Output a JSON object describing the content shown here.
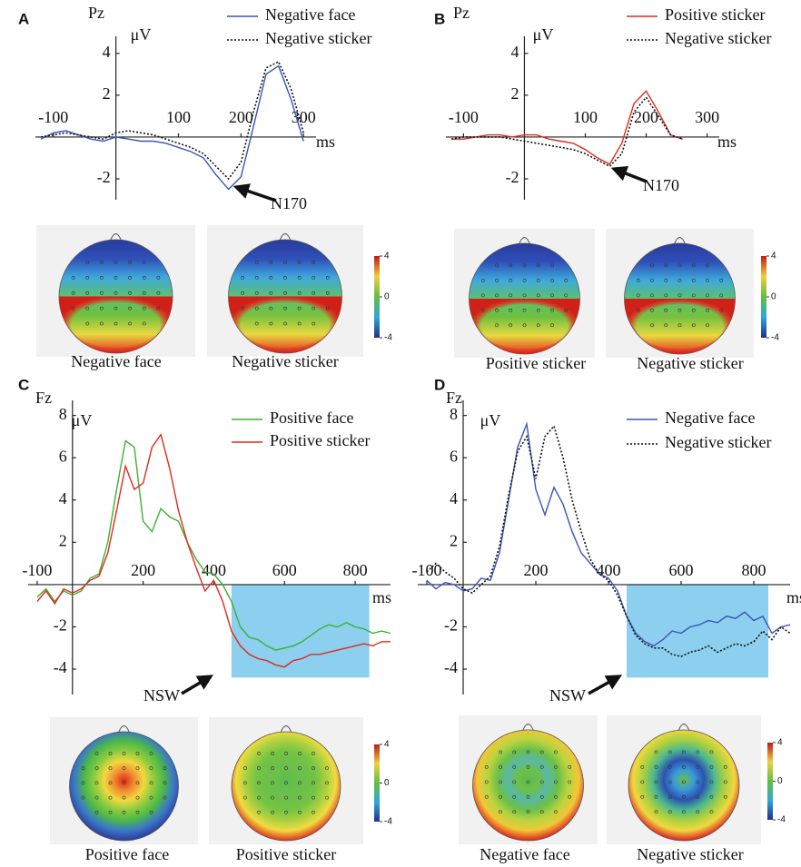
{
  "chart_data": [
    {
      "type": "line",
      "panel": "A",
      "channel": "Pz",
      "y_unit": "μV",
      "x_unit": "ms",
      "x": [
        -120,
        -100,
        -80,
        -60,
        -40,
        -20,
        0,
        20,
        40,
        60,
        80,
        100,
        120,
        140,
        160,
        180,
        200,
        220,
        240,
        260,
        280,
        300
      ],
      "series": [
        {
          "name": "Negative face",
          "color": "#3a55b8",
          "dash": false,
          "values": [
            -0.1,
            0.2,
            0.3,
            0.1,
            -0.1,
            -0.2,
            0,
            -0.1,
            -0.2,
            -0.2,
            -0.3,
            -0.5,
            -0.7,
            -1.0,
            -1.8,
            -2.5,
            -1.9,
            0.5,
            3.0,
            3.4,
            1.8,
            -0.2
          ]
        },
        {
          "name": "Negative sticker",
          "color": "#111111",
          "dash": true,
          "values": [
            0,
            0.1,
            0.2,
            0.1,
            0,
            -0.1,
            0.2,
            0.3,
            0.2,
            0.1,
            -0.1,
            -0.3,
            -0.5,
            -0.8,
            -1.4,
            -2.0,
            -1.2,
            1.2,
            3.3,
            3.6,
            2.3,
            0.2
          ]
        }
      ],
      "xlim": [
        -120,
        320
      ],
      "ylim": [
        -3,
        4.6
      ],
      "xticks": [
        -100,
        100,
        200,
        300
      ],
      "yticks": [
        4,
        2,
        -2
      ],
      "annotation": "N170",
      "topomaps": [
        {
          "label": "Negative face",
          "gradient": "linear",
          "colors": [
            "#2a3a9c",
            "#2f4fb8",
            "#3fa8dc",
            "#5cc070",
            "#70c040",
            "#e8d840",
            "#e03020"
          ]
        },
        {
          "label": "Negative sticker",
          "gradient": "linear",
          "colors": [
            "#2a3a9c",
            "#2f4fb8",
            "#3fa8dc",
            "#5cc070",
            "#78c040",
            "#e8d840",
            "#e03020"
          ]
        }
      ],
      "colorbar": {
        "lim": [
          -4,
          4
        ],
        "ticks": [
          4,
          0,
          -4
        ]
      }
    },
    {
      "type": "line",
      "panel": "B",
      "channel": "Pz",
      "y_unit": "μV",
      "x_unit": "ms",
      "x": [
        -120,
        -100,
        -80,
        -60,
        -40,
        -20,
        0,
        20,
        40,
        60,
        80,
        100,
        120,
        140,
        160,
        180,
        200,
        220,
        240,
        260
      ],
      "series": [
        {
          "name": "Positive sticker",
          "color": "#e02a20",
          "dash": false,
          "values": [
            -0.1,
            -0.1,
            0,
            0.1,
            0.1,
            0,
            0.1,
            0.1,
            -0.1,
            -0.2,
            -0.3,
            -0.6,
            -1.0,
            -1.3,
            -0.3,
            1.6,
            2.2,
            1.2,
            0.1,
            -0.1
          ]
        },
        {
          "name": "Negative sticker",
          "color": "#111111",
          "dash": true,
          "values": [
            -0.1,
            0,
            0,
            0,
            0,
            -0.1,
            -0.2,
            -0.3,
            -0.4,
            -0.5,
            -0.6,
            -0.8,
            -1.1,
            -1.4,
            -0.8,
            1.2,
            1.9,
            1.0,
            0.1,
            -0.1
          ]
        }
      ],
      "xlim": [
        -120,
        320
      ],
      "ylim": [
        -3,
        4.6
      ],
      "xticks": [
        -100,
        100,
        200,
        300
      ],
      "yticks": [
        4,
        2,
        -2
      ],
      "annotation": "N170",
      "topomaps": [
        {
          "label": "Positive sticker",
          "gradient": "linear",
          "colors": [
            "#2a3a9c",
            "#2f4fb8",
            "#3fa8dc",
            "#5cc070",
            "#70c040",
            "#e8d840",
            "#e03020"
          ]
        },
        {
          "label": "Negative sticker",
          "gradient": "linear",
          "colors": [
            "#2a3a9c",
            "#2f4fb8",
            "#3fa8dc",
            "#5cc070",
            "#78c040",
            "#e8d840",
            "#e03020"
          ]
        }
      ],
      "colorbar": {
        "lim": [
          -4,
          4
        ],
        "ticks": [
          4,
          0,
          -4
        ]
      }
    },
    {
      "type": "line",
      "panel": "C",
      "channel": "Fz",
      "y_unit": "μV",
      "x_unit": "ms",
      "x": [
        -100,
        -75,
        -50,
        -25,
        0,
        25,
        50,
        75,
        100,
        125,
        150,
        175,
        200,
        225,
        250,
        275,
        300,
        325,
        350,
        375,
        400,
        425,
        450,
        475,
        500,
        525,
        550,
        575,
        600,
        625,
        650,
        675,
        700,
        725,
        750,
        775,
        800,
        825,
        850,
        875,
        900
      ],
      "series": [
        {
          "name": "Positive face",
          "color": "#3cb034",
          "dash": false,
          "values": [
            -0.6,
            -0.2,
            -0.8,
            -0.3,
            -0.5,
            -0.3,
            0.3,
            0.5,
            2.0,
            4.5,
            6.8,
            6.5,
            3.0,
            2.5,
            3.6,
            3.2,
            3.0,
            2.0,
            1.2,
            0.6,
            0.5,
            0,
            -0.8,
            -2.0,
            -2.5,
            -2.6,
            -2.9,
            -3.1,
            -3.0,
            -2.9,
            -2.7,
            -2.4,
            -2.1,
            -1.9,
            -2.0,
            -1.8,
            -2.0,
            -2.1,
            -2.3,
            -2.2,
            -2.3
          ]
        },
        {
          "name": "Positive sticker",
          "color": "#e02a20",
          "dash": false,
          "values": [
            -0.8,
            -0.3,
            -0.9,
            -0.2,
            -0.4,
            -0.2,
            0.2,
            0.4,
            1.5,
            3.5,
            5.6,
            4.5,
            4.8,
            6.5,
            7.1,
            5.5,
            3.5,
            2.0,
            0.8,
            -0.3,
            0.2,
            -0.8,
            -2.2,
            -2.9,
            -3.3,
            -3.5,
            -3.6,
            -3.8,
            -3.9,
            -3.6,
            -3.5,
            -3.3,
            -3.3,
            -3.2,
            -3.1,
            -3.0,
            -2.9,
            -2.8,
            -2.9,
            -2.7,
            -2.7
          ]
        }
      ],
      "xlim": [
        -110,
        900
      ],
      "ylim": [
        -5.2,
        8.5
      ],
      "xticks": [
        -100,
        200,
        400,
        600,
        800
      ],
      "yticks": [
        8,
        6,
        4,
        2,
        -2,
        -4
      ],
      "highlight": {
        "x": [
          450,
          840
        ],
        "y": [
          -4.4,
          0
        ]
      },
      "annotation": "NSW",
      "topomaps": [
        {
          "label": "Positive face",
          "gradient": "radial",
          "colors": [
            "#e02818",
            "#f08a30",
            "#f0d840",
            "#8ccc40",
            "#4cb848",
            "#3a78c8",
            "#2c3c9c"
          ]
        },
        {
          "label": "Positive sticker",
          "gradient": "radial",
          "colors": [
            "#5cbc50",
            "#68c04c",
            "#6cc048",
            "#74c444",
            "#a8d040",
            "#f0dc40",
            "#e03020"
          ]
        }
      ],
      "colorbar": {
        "lim": [
          -4,
          4
        ],
        "ticks": [
          4,
          0,
          -4
        ]
      }
    },
    {
      "type": "line",
      "panel": "D",
      "channel": "Fz",
      "y_unit": "μV",
      "x_unit": "ms",
      "x": [
        -100,
        -75,
        -50,
        -25,
        0,
        25,
        50,
        75,
        100,
        125,
        150,
        175,
        200,
        225,
        250,
        275,
        300,
        325,
        350,
        375,
        400,
        425,
        450,
        475,
        500,
        525,
        550,
        575,
        600,
        625,
        650,
        675,
        700,
        725,
        750,
        775,
        800,
        825,
        850,
        875,
        900
      ],
      "series": [
        {
          "name": "Negative face",
          "color": "#3a55b8",
          "dash": false,
          "values": [
            0.2,
            -0.2,
            0.1,
            0,
            -0.3,
            -0.2,
            0.3,
            0.2,
            1.5,
            4.0,
            6.5,
            7.6,
            4.5,
            3.3,
            4.6,
            3.8,
            2.5,
            1.5,
            1.0,
            0.5,
            0.3,
            -0.3,
            -1.5,
            -2.3,
            -2.7,
            -2.9,
            -2.6,
            -2.2,
            -2.3,
            -2.0,
            -1.9,
            -1.7,
            -1.8,
            -1.5,
            -1.6,
            -1.3,
            -1.7,
            -1.5,
            -2.3,
            -2.0,
            -1.9
          ]
        },
        {
          "name": "Negative sticker",
          "color": "#111111",
          "dash": true,
          "values": [
            0.6,
            1.0,
            0.6,
            0.3,
            -0.2,
            -0.4,
            0,
            0.4,
            1.8,
            4.2,
            6.3,
            7.0,
            5.0,
            7.0,
            7.5,
            6.0,
            4.0,
            2.5,
            1.2,
            0.5,
            0.2,
            -0.5,
            -1.5,
            -2.4,
            -2.8,
            -3.0,
            -3.0,
            -3.3,
            -3.4,
            -3.2,
            -3.1,
            -2.9,
            -3.2,
            -3.0,
            -2.8,
            -2.9,
            -2.7,
            -2.2,
            -2.6,
            -2.0,
            -2.3
          ]
        }
      ],
      "xlim": [
        -110,
        900
      ],
      "ylim": [
        -5.2,
        8.5
      ],
      "xticks": [
        -100,
        200,
        400,
        600,
        800
      ],
      "yticks": [
        8,
        6,
        4,
        2,
        -2,
        -4
      ],
      "highlight": {
        "x": [
          450,
          840
        ],
        "y": [
          -4.4,
          0
        ]
      },
      "annotation": "NSW",
      "topomaps": [
        {
          "label": "Negative face",
          "gradient": "radial",
          "colors": [
            "#5cbc50",
            "#6cc048",
            "#58b8a8",
            "#6cc048",
            "#b8d440",
            "#f0c838",
            "#e02020"
          ]
        },
        {
          "label": "Negative sticker",
          "gradient": "radial",
          "colors": [
            "#6cc048",
            "#3a9ad8",
            "#2c52b0",
            "#4cb890",
            "#a8d040",
            "#f0d840",
            "#e02020"
          ]
        }
      ],
      "colorbar": {
        "lim": [
          -4,
          4
        ],
        "ticks": [
          4,
          0,
          -4
        ]
      }
    }
  ]
}
